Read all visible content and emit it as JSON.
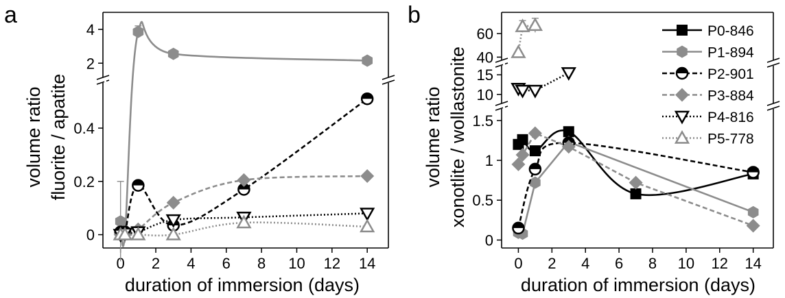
{
  "chart_data": [
    {
      "panel_label": "a",
      "type": "line",
      "xlabel": "duration of immersion (days)",
      "ylabel_line1": "volume ratio",
      "ylabel_line2": "fluorite / apatite",
      "axis_break": true,
      "x_ticks": [
        0,
        2,
        4,
        6,
        8,
        10,
        12,
        14
      ],
      "upper_range": {
        "ylim": [
          1.0,
          5.0
        ],
        "ticks": [
          2,
          4
        ]
      },
      "lower_range": {
        "ylim": [
          -0.05,
          0.58
        ],
        "ticks": [
          0.0,
          0.2,
          0.4
        ]
      },
      "series": [
        {
          "name": "P1-894",
          "color": "#8c8c8c",
          "line": "solid",
          "marker": "hexagon",
          "smooth": true,
          "x": [
            0,
            0.25,
            1,
            3,
            14
          ],
          "y": [
            0.05,
            0.0,
            3.85,
            2.55,
            2.15
          ],
          "errors": [
            0.15,
            0.03,
            0.35,
            0.08,
            0.05
          ]
        },
        {
          "name": "P2-901",
          "color": "#000000",
          "line": "dashed",
          "marker": "half-circle",
          "smooth": true,
          "x": [
            0,
            0.25,
            1,
            3,
            7,
            14
          ],
          "y": [
            0.01,
            0.01,
            0.185,
            0.035,
            0.17,
            0.51
          ],
          "errors": [
            0,
            0,
            0,
            0,
            0,
            0
          ]
        },
        {
          "name": "P3-884",
          "color": "#8c8c8c",
          "line": "dashed",
          "marker": "diamond",
          "smooth": true,
          "x": [
            0,
            0.25,
            1,
            3,
            7,
            14
          ],
          "y": [
            0.0,
            0.0,
            0.02,
            0.12,
            0.205,
            0.22
          ],
          "errors": [
            0,
            0,
            0,
            0,
            0,
            0
          ]
        },
        {
          "name": "P4-816",
          "color": "#000000",
          "line": "dotted",
          "marker": "triangle-down",
          "smooth": true,
          "x": [
            0,
            0.25,
            1,
            3,
            7,
            14
          ],
          "y": [
            0.0,
            0.005,
            0.01,
            0.055,
            0.065,
            0.08
          ],
          "errors": [
            0,
            0,
            0,
            0,
            0,
            0
          ]
        },
        {
          "name": "P5-778",
          "color": "#8c8c8c",
          "line": "dotted",
          "marker": "triangle-up",
          "smooth": true,
          "x": [
            0,
            0.25,
            1,
            3,
            7,
            14
          ],
          "y": [
            0.0,
            0.0,
            0.0,
            0.0,
            0.045,
            0.03
          ],
          "errors": [
            0,
            0,
            0,
            0,
            0,
            0
          ]
        }
      ]
    },
    {
      "panel_label": "b",
      "type": "line",
      "xlabel": "duration of immersion (days)",
      "ylabel_line1": "volume ratio",
      "ylabel_line2": "xonotlite / wollastonite",
      "axis_break": true,
      "x_ticks": [
        0,
        2,
        4,
        6,
        8,
        10,
        12,
        14
      ],
      "top_range": {
        "ylim": [
          35,
          78
        ],
        "ticks": [
          40,
          60
        ]
      },
      "middle_range": {
        "ylim": [
          7,
          18
        ],
        "ticks": [
          10,
          15
        ]
      },
      "lower_range": {
        "ylim": [
          -0.1,
          1.68
        ],
        "ticks": [
          0.0,
          0.5,
          1.0,
          1.5
        ]
      },
      "legend": {
        "position": "top-right",
        "entries": [
          "P0-846",
          "P1-894",
          "P2-901",
          "P3-884",
          "P4-816",
          "P5-778"
        ]
      },
      "series": [
        {
          "name": "P0-846",
          "color": "#000000",
          "line": "solid",
          "marker": "square",
          "smooth": true,
          "x": [
            0,
            0.25,
            1,
            3,
            7,
            14
          ],
          "y": [
            1.2,
            1.26,
            1.12,
            1.36,
            0.58,
            0.83
          ]
        },
        {
          "name": "P1-894",
          "color": "#8c8c8c",
          "line": "solid",
          "marker": "hexagon",
          "smooth": false,
          "x": [
            0,
            0.25,
            1,
            3,
            14
          ],
          "y": [
            0.09,
            0.08,
            0.72,
            1.23,
            0.35
          ]
        },
        {
          "name": "P2-901",
          "color": "#000000",
          "line": "dashed",
          "marker": "half-circle",
          "smooth": true,
          "x": [
            0,
            1,
            3,
            14
          ],
          "y": [
            0.15,
            0.89,
            1.22,
            0.85
          ]
        },
        {
          "name": "P3-884",
          "color": "#8c8c8c",
          "line": "dashed",
          "marker": "diamond",
          "smooth": false,
          "x": [
            0,
            0.25,
            1,
            3,
            7,
            14
          ],
          "y": [
            0.95,
            1.07,
            1.34,
            1.17,
            0.72,
            0.18
          ]
        },
        {
          "name": "P4-816",
          "color": "#000000",
          "line": "dotted",
          "marker": "triangle-down",
          "smooth": false,
          "x": [
            0,
            0.25,
            1,
            3
          ],
          "y": [
            11.5,
            11,
            11,
            15.5
          ]
        },
        {
          "name": "P5-778",
          "color": "#8c8c8c",
          "line": "dotted",
          "marker": "triangle-up",
          "smooth": false,
          "x": [
            0,
            0.25,
            1
          ],
          "y": [
            44,
            66,
            67
          ],
          "errors": [
            0,
            5,
            6
          ]
        }
      ]
    }
  ]
}
